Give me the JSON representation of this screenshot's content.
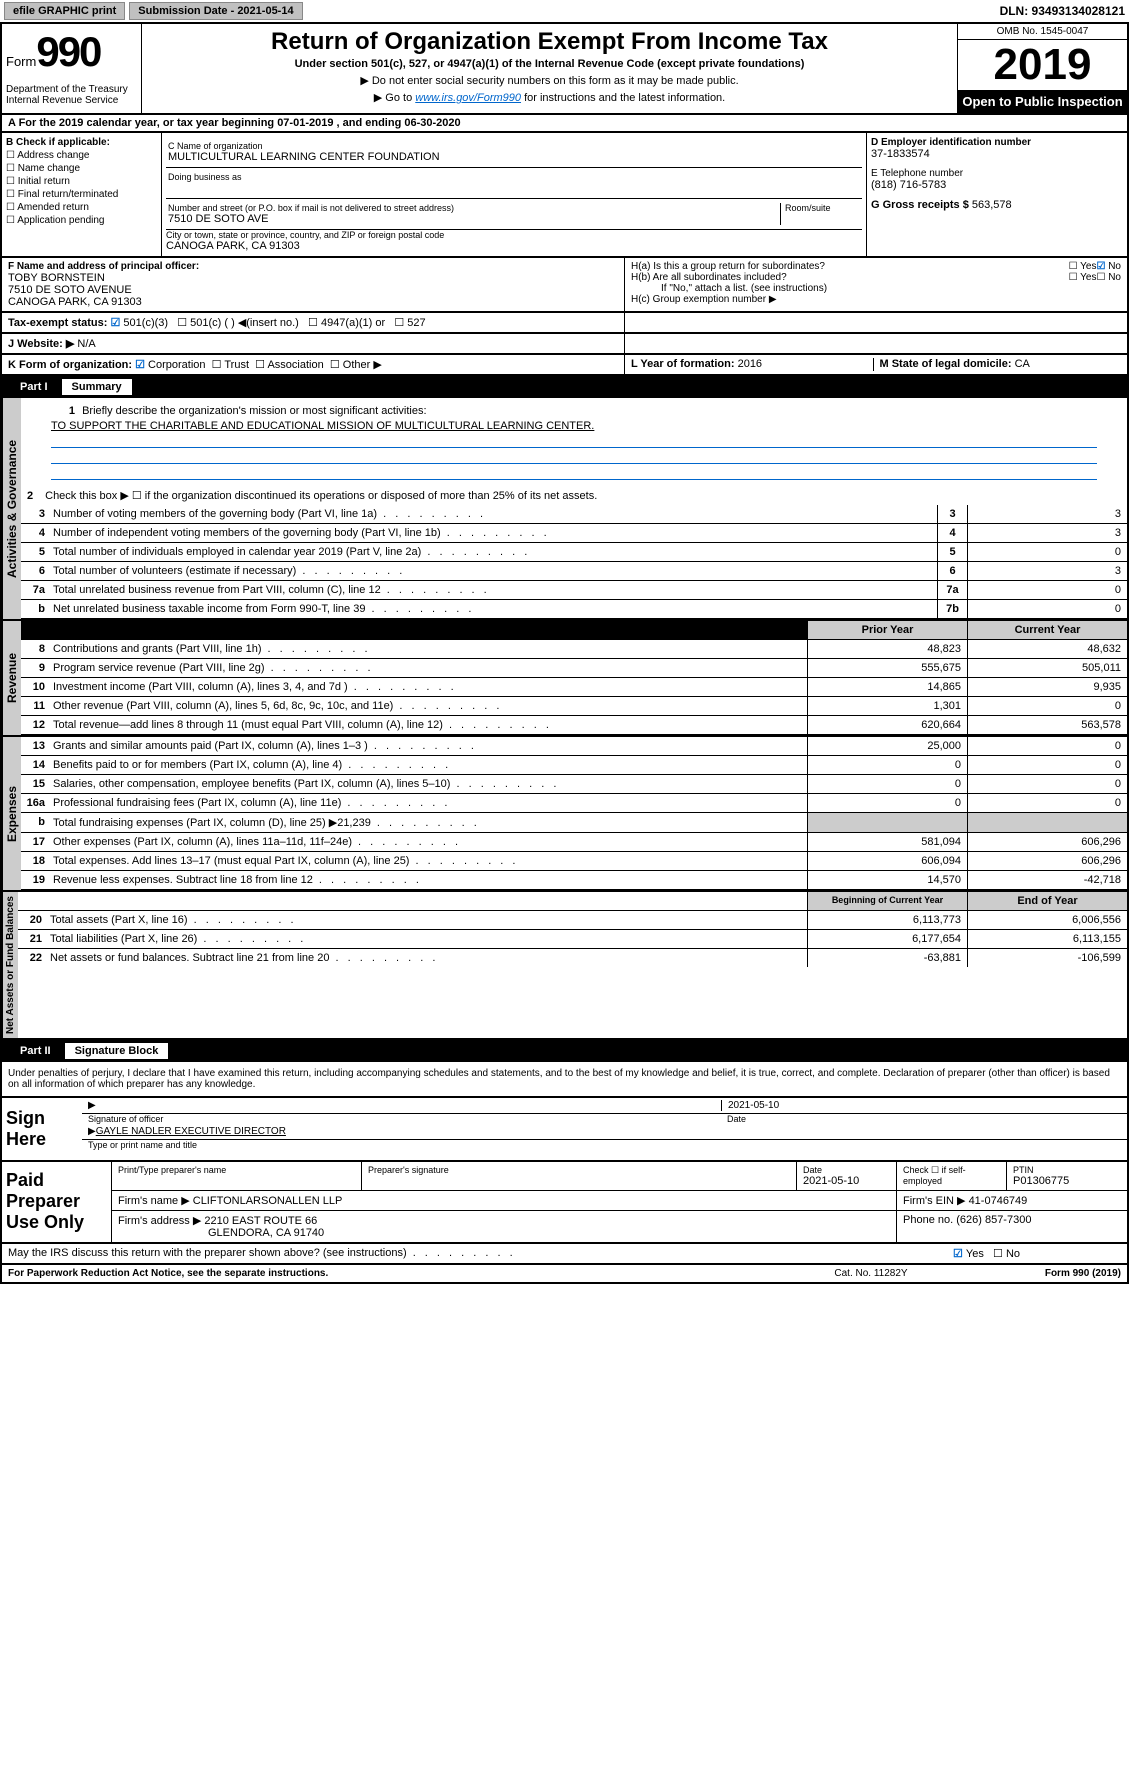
{
  "topbar": {
    "efile": "efile GRAPHIC print",
    "submission": "Submission Date - 2021-05-14",
    "dln": "DLN: 93493134028121"
  },
  "header": {
    "form_prefix": "Form",
    "form_num": "990",
    "title": "Return of Organization Exempt From Income Tax",
    "subtitle": "Under section 501(c), 527, or 4947(a)(1) of the Internal Revenue Code (except private foundations)",
    "note1": "▶ Do not enter social security numbers on this form as it may be made public.",
    "note2_pre": "▶ Go to ",
    "note2_link": "www.irs.gov/Form990",
    "note2_post": " for instructions and the latest information.",
    "dept": "Department of the Treasury\nInternal Revenue Service",
    "omb": "OMB No. 1545-0047",
    "year": "2019",
    "open_pub": "Open to Public Inspection"
  },
  "period": {
    "text": "A For the 2019 calendar year, or tax year beginning 07-01-2019    , and ending 06-30-2020"
  },
  "box_b": {
    "header": "B Check if applicable:",
    "items": [
      "Address change",
      "Name change",
      "Initial return",
      "Final return/terminated",
      "Amended return",
      "Application pending"
    ]
  },
  "box_c": {
    "label": "C Name of organization",
    "org": "MULTICULTURAL LEARNING CENTER FOUNDATION",
    "dba_label": "Doing business as",
    "addr_label": "Number and street (or P.O. box if mail is not delivered to street address)",
    "room_label": "Room/suite",
    "addr": "7510 DE SOTO AVE",
    "city_label": "City or town, state or province, country, and ZIP or foreign postal code",
    "city": "CANOGA PARK, CA  91303"
  },
  "box_d": {
    "label": "D Employer identification number",
    "val": "37-1833574"
  },
  "box_e": {
    "label": "E Telephone number",
    "val": "(818) 716-5783"
  },
  "box_g": {
    "label": "G Gross receipts $",
    "val": "563,578"
  },
  "box_f": {
    "label": "F Name and address of principal officer:",
    "name": "TOBY BORNSTEIN",
    "addr1": "7510 DE SOTO AVENUE",
    "addr2": "CANOGA PARK, CA  91303"
  },
  "box_h": {
    "a": "H(a)  Is this a group return for subordinates?",
    "b": "H(b)  Are all subordinates included?",
    "note": "If \"No,\" attach a list. (see instructions)",
    "c": "H(c)  Group exemption number ▶"
  },
  "tax_status": {
    "label": "Tax-exempt status:",
    "opts": [
      "501(c)(3)",
      "501(c) (  ) ◀(insert no.)",
      "4947(a)(1) or",
      "527"
    ]
  },
  "website": {
    "label": "J   Website: ▶",
    "val": "N/A"
  },
  "box_k": {
    "label": "K Form of organization:",
    "opts": [
      "Corporation",
      "Trust",
      "Association",
      "Other ▶"
    ]
  },
  "box_l": {
    "label": "L Year of formation:",
    "val": "2016"
  },
  "box_m": {
    "label": "M State of legal domicile:",
    "val": "CA"
  },
  "part1": {
    "header": "Part I",
    "title": "Summary",
    "line1_label": "Briefly describe the organization's mission or most significant activities:",
    "mission": "TO SUPPORT THE CHARITABLE AND EDUCATIONAL MISSION OF MULTICULTURAL LEARNING CENTER.",
    "line2": "Check this box ▶ ☐  if the organization discontinued its operations or disposed of more than 25% of its net assets.",
    "sidebar1": "Activities & Governance",
    "sidebar2": "Revenue",
    "sidebar3": "Expenses",
    "sidebar4": "Net Assets or Fund Balances",
    "col_prior": "Prior Year",
    "col_current": "Current Year",
    "col_begin": "Beginning of Current Year",
    "col_end": "End of Year",
    "lines_gov": [
      {
        "n": "3",
        "t": "Number of voting members of the governing body (Part VI, line 1a)",
        "box": "3",
        "v": "3"
      },
      {
        "n": "4",
        "t": "Number of independent voting members of the governing body (Part VI, line 1b)",
        "box": "4",
        "v": "3"
      },
      {
        "n": "5",
        "t": "Total number of individuals employed in calendar year 2019 (Part V, line 2a)",
        "box": "5",
        "v": "0"
      },
      {
        "n": "6",
        "t": "Total number of volunteers (estimate if necessary)",
        "box": "6",
        "v": "3"
      },
      {
        "n": "7a",
        "t": "Total unrelated business revenue from Part VIII, column (C), line 12",
        "box": "7a",
        "v": "0"
      },
      {
        "n": "b",
        "t": "Net unrelated business taxable income from Form 990-T, line 39",
        "box": "7b",
        "v": "0"
      }
    ],
    "lines_rev": [
      {
        "n": "8",
        "t": "Contributions and grants (Part VIII, line 1h)",
        "p": "48,823",
        "c": "48,632"
      },
      {
        "n": "9",
        "t": "Program service revenue (Part VIII, line 2g)",
        "p": "555,675",
        "c": "505,011"
      },
      {
        "n": "10",
        "t": "Investment income (Part VIII, column (A), lines 3, 4, and 7d )",
        "p": "14,865",
        "c": "9,935"
      },
      {
        "n": "11",
        "t": "Other revenue (Part VIII, column (A), lines 5, 6d, 8c, 9c, 10c, and 11e)",
        "p": "1,301",
        "c": "0"
      },
      {
        "n": "12",
        "t": "Total revenue—add lines 8 through 11 (must equal Part VIII, column (A), line 12)",
        "p": "620,664",
        "c": "563,578"
      }
    ],
    "lines_exp": [
      {
        "n": "13",
        "t": "Grants and similar amounts paid (Part IX, column (A), lines 1–3 )",
        "p": "25,000",
        "c": "0"
      },
      {
        "n": "14",
        "t": "Benefits paid to or for members (Part IX, column (A), line 4)",
        "p": "0",
        "c": "0"
      },
      {
        "n": "15",
        "t": "Salaries, other compensation, employee benefits (Part IX, column (A), lines 5–10)",
        "p": "0",
        "c": "0"
      },
      {
        "n": "16a",
        "t": "Professional fundraising fees (Part IX, column (A), line 11e)",
        "p": "0",
        "c": "0"
      },
      {
        "n": "b",
        "t": "Total fundraising expenses (Part IX, column (D), line 25) ▶21,239",
        "p": "",
        "c": ""
      },
      {
        "n": "17",
        "t": "Other expenses (Part IX, column (A), lines 11a–11d, 11f–24e)",
        "p": "581,094",
        "c": "606,296"
      },
      {
        "n": "18",
        "t": "Total expenses. Add lines 13–17 (must equal Part IX, column (A), line 25)",
        "p": "606,094",
        "c": "606,296"
      },
      {
        "n": "19",
        "t": "Revenue less expenses. Subtract line 18 from line 12",
        "p": "14,570",
        "c": "-42,718"
      }
    ],
    "lines_net": [
      {
        "n": "20",
        "t": "Total assets (Part X, line 16)",
        "p": "6,113,773",
        "c": "6,006,556"
      },
      {
        "n": "21",
        "t": "Total liabilities (Part X, line 26)",
        "p": "6,177,654",
        "c": "6,113,155"
      },
      {
        "n": "22",
        "t": "Net assets or fund balances. Subtract line 21 from line 20",
        "p": "-63,881",
        "c": "-106,599"
      }
    ]
  },
  "part2": {
    "header": "Part II",
    "title": "Signature Block",
    "declaration": "Under penalties of perjury, I declare that I have examined this return, including accompanying schedules and statements, and to the best of my knowledge and belief, it is true, correct, and complete. Declaration of preparer (other than officer) is based on all information of which preparer has any knowledge.",
    "sign_here": "Sign Here",
    "sig_officer": "Signature of officer",
    "date": "2021-05-10",
    "date_label": "Date",
    "officer_name": "GAYLE NADLER  EXECUTIVE DIRECTOR",
    "type_label": "Type or print name and title"
  },
  "preparer": {
    "label": "Paid Preparer Use Only",
    "print_label": "Print/Type preparer's name",
    "sig_label": "Preparer's signature",
    "date_label": "Date",
    "date": "2021-05-10",
    "check_label": "Check ☐ if self-employed",
    "ptin_label": "PTIN",
    "ptin": "P01306775",
    "firm_name_label": "Firm's name    ▶",
    "firm_name": "CLIFTONLARSONALLEN LLP",
    "firm_ein_label": "Firm's EIN ▶",
    "firm_ein": "41-0746749",
    "firm_addr_label": "Firm's address ▶",
    "firm_addr1": "2210 EAST ROUTE 66",
    "firm_addr2": "GLENDORA, CA  91740",
    "phone_label": "Phone no.",
    "phone": "(626) 857-7300"
  },
  "discuss": {
    "text": "May the IRS discuss this return with the preparer shown above? (see instructions)",
    "yes": "Yes",
    "no": "No"
  },
  "footer": {
    "left": "For Paperwork Reduction Act Notice, see the separate instructions.",
    "mid": "Cat. No. 11282Y",
    "right": "Form 990 (2019)"
  },
  "colors": {
    "link": "#0066cc",
    "header_bg": "#000000",
    "shade": "#cccccc"
  }
}
